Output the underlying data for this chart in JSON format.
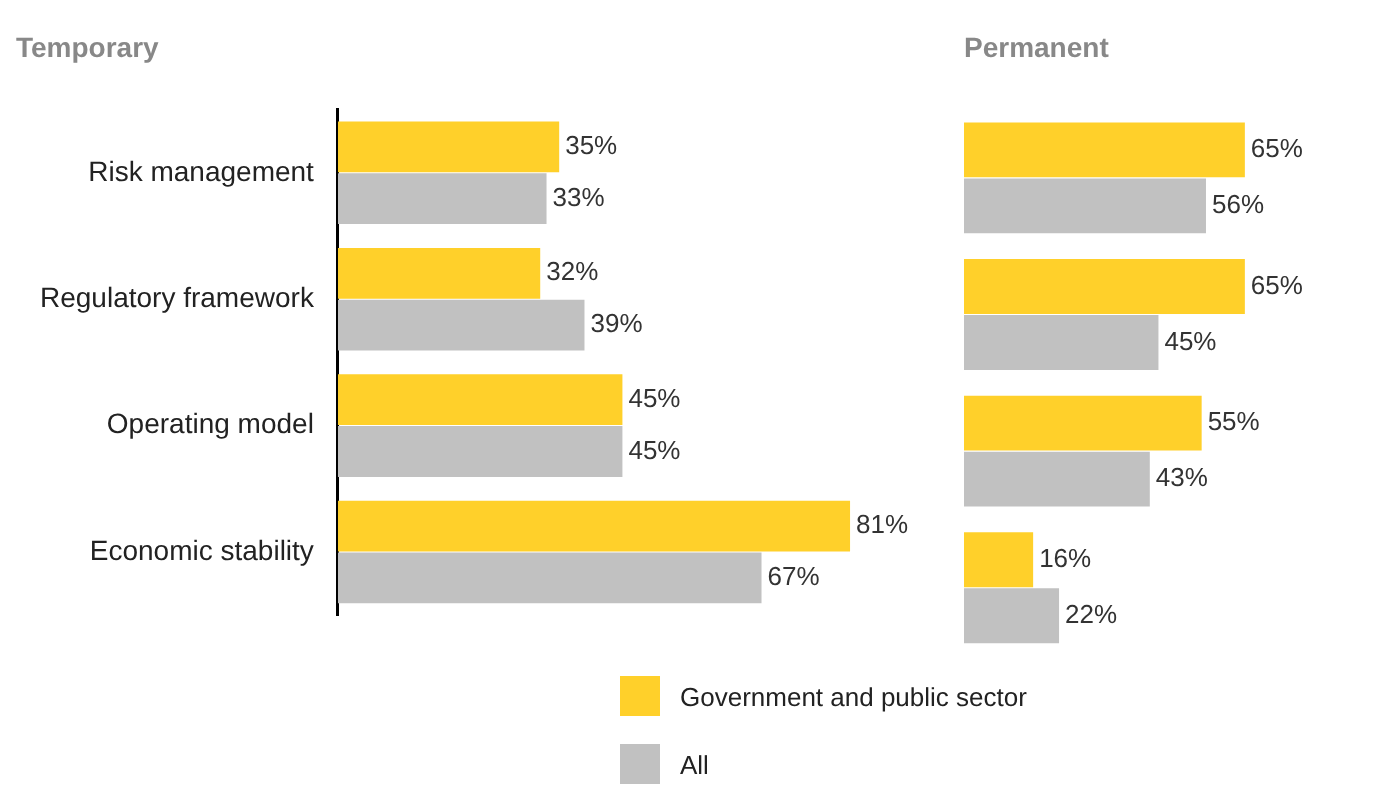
{
  "chart_data": [
    {
      "type": "bar",
      "orientation": "horizontal",
      "title": "Temporary",
      "categories": [
        "Risk management",
        "Regulatory framework",
        "Operating model",
        "Economic stability"
      ],
      "legend": "bottom",
      "grid": false,
      "tick_labels": "y",
      "series": [
        {
          "name": "Government and public sector",
          "color": "#ffd02a",
          "values": [
            35,
            32,
            45,
            81
          ],
          "value_labels": [
            "35%",
            "32%",
            "45%",
            "81%"
          ]
        },
        {
          "name": "All",
          "color": "#c1c1c1",
          "values": [
            33,
            39,
            45,
            67
          ],
          "value_labels": [
            "33%",
            "39%",
            "45%",
            "67%"
          ]
        }
      ]
    },
    {
      "type": "bar",
      "orientation": "horizontal",
      "title": "Permanent",
      "categories": [
        null,
        null,
        null,
        null
      ],
      "tick_labels": false,
      "grid": false,
      "series": [
        {
          "color": "#ffd02a",
          "values": [
            65,
            65,
            55,
            16
          ],
          "value_labels": [
            "65%",
            "65%",
            "55%",
            "16%"
          ]
        },
        {
          "color": "#c1c1c1",
          "values": [
            56,
            45,
            43,
            22
          ],
          "value_labels": [
            "56%",
            "45%",
            "43%",
            "22%"
          ]
        }
      ]
    }
  ]
}
